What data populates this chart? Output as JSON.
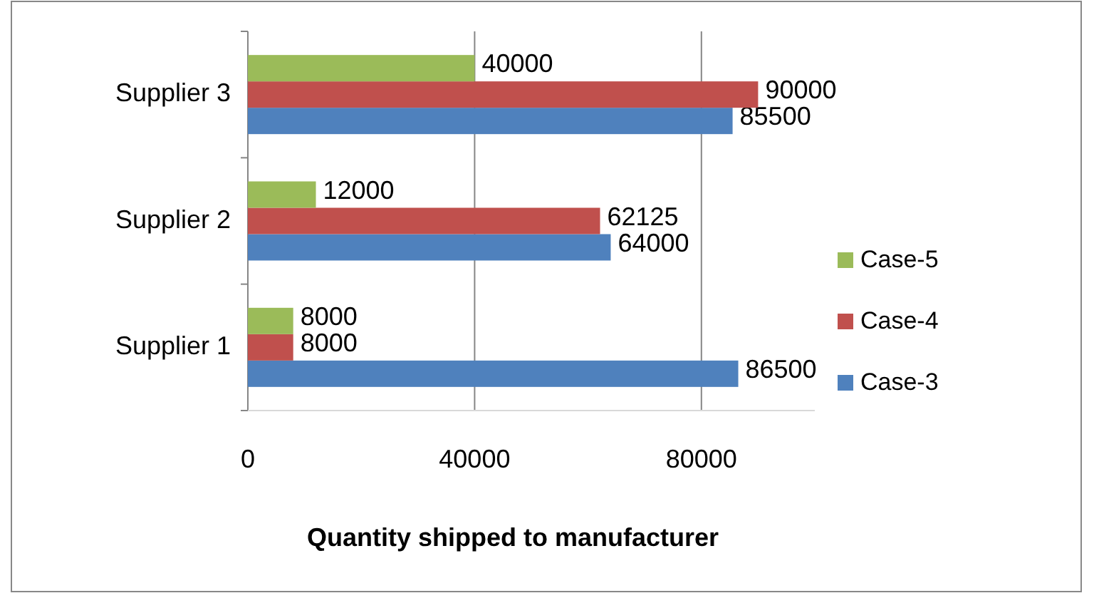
{
  "chart_data": {
    "type": "bar",
    "orientation": "horizontal",
    "xlabel": "Quantity shipped to manufacturer",
    "categories": [
      "Supplier 3",
      "Supplier 2",
      "Supplier 1"
    ],
    "series": [
      {
        "name": "Case-3",
        "color": "#4f81bd",
        "values": [
          85500,
          64000,
          86500
        ]
      },
      {
        "name": "Case-4",
        "color": "#c0504d",
        "values": [
          90000,
          62125,
          8000
        ]
      },
      {
        "name": "Case-5",
        "color": "#9bbb59",
        "values": [
          40000,
          12000,
          8000
        ]
      }
    ],
    "xlim": [
      0,
      100000
    ],
    "xticks": [
      0,
      40000,
      80000
    ],
    "grid": "x",
    "legend": "right",
    "data_labels": true
  }
}
